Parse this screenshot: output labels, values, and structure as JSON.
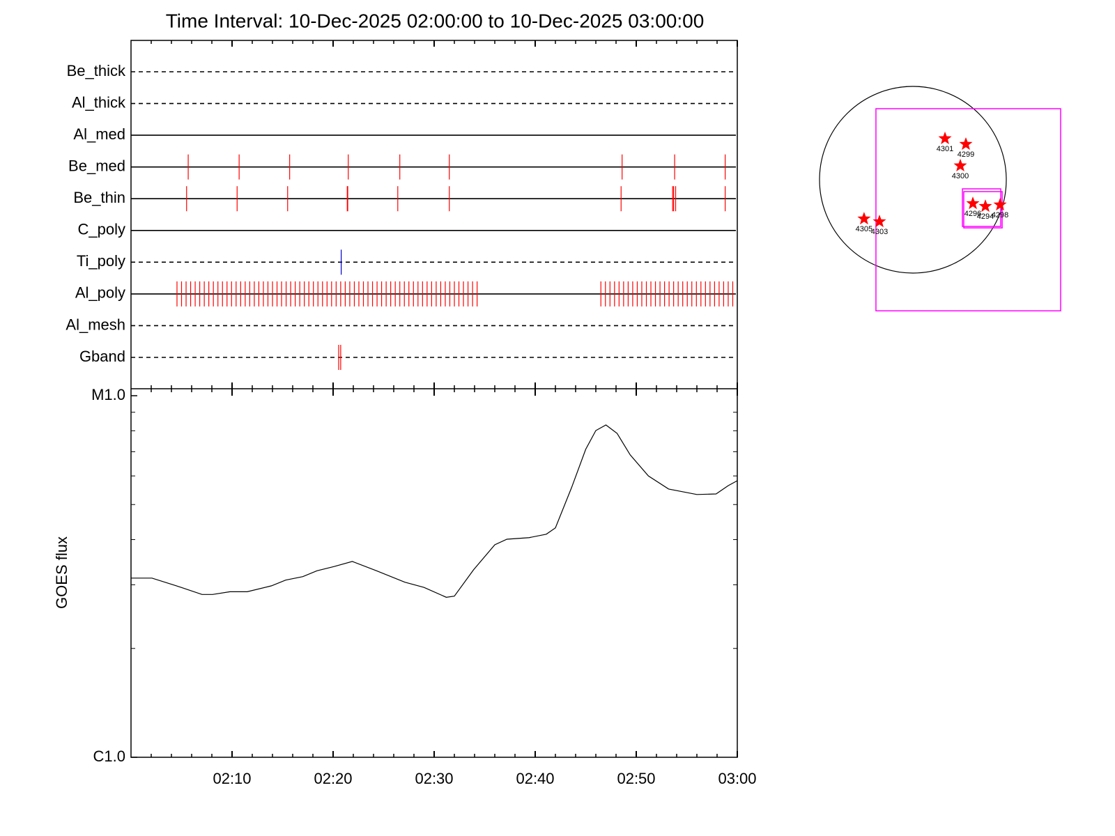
{
  "chart_data": [
    {
      "type": "event",
      "title": "Time Interval: 10-Dec-2025 02:00:00 to 10-Dec-2025 03:00:00",
      "xlim": [
        0,
        60
      ],
      "xticks": [
        10,
        20,
        30,
        40,
        50,
        60
      ],
      "xminorticks": [
        2,
        4,
        6,
        8,
        12,
        14,
        16,
        18,
        22,
        24,
        26,
        28,
        32,
        34,
        36,
        38,
        42,
        44,
        46,
        48,
        52,
        54,
        56,
        58
      ],
      "rows": [
        {
          "name": "Be_thick",
          "style": "dashed",
          "color": "#ff0000",
          "events": []
        },
        {
          "name": "Al_thick",
          "style": "dashed",
          "color": "#ff0000",
          "events": []
        },
        {
          "name": "Al_med",
          "style": "solid",
          "color": "#ff0000",
          "events": []
        },
        {
          "name": "Be_med",
          "style": "solid",
          "color": "#ff0000",
          "events": [
            5.66,
            10.7,
            15.7,
            21.5,
            26.6,
            31.5,
            48.6,
            53.8,
            58.8
          ]
        },
        {
          "name": "Be_thin",
          "style": "solid",
          "color": "#ff0000",
          "events": [
            5.5,
            10.5,
            15.5,
            21.4,
            21.45,
            26.4,
            31.5,
            48.5,
            53.6,
            53.7,
            53.9,
            58.8
          ]
        },
        {
          "name": "C_poly",
          "style": "solid",
          "color": "#ff0000",
          "events": []
        },
        {
          "name": "Ti_poly",
          "style": "dashed",
          "color": "#0000cc",
          "events": [
            20.8
          ]
        },
        {
          "name": "Al_poly",
          "style": "solid",
          "color": "#ff0000",
          "events": [
            4.55,
            5.0,
            5.45,
            5.9,
            6.35,
            6.8,
            7.25,
            7.7,
            8.15,
            8.6,
            9.05,
            9.5,
            9.95,
            10.4,
            10.85,
            11.3,
            11.75,
            12.2,
            12.65,
            13.1,
            13.55,
            14.0,
            14.45,
            14.9,
            15.35,
            15.8,
            16.25,
            16.7,
            17.15,
            17.6,
            18.05,
            18.5,
            18.95,
            19.4,
            19.85,
            20.3,
            20.75,
            21.2,
            21.65,
            22.1,
            22.55,
            23.0,
            23.45,
            23.9,
            24.35,
            24.8,
            25.25,
            25.7,
            26.15,
            26.6,
            27.05,
            27.5,
            27.95,
            28.4,
            28.85,
            29.3,
            29.75,
            30.2,
            30.65,
            31.1,
            31.55,
            32.0,
            32.45,
            32.9,
            33.35,
            33.8,
            34.25,
            46.5,
            46.95,
            47.4,
            47.85,
            48.3,
            48.75,
            49.2,
            49.65,
            50.1,
            50.55,
            51.0,
            51.45,
            51.9,
            52.35,
            52.8,
            53.25,
            53.7,
            54.15,
            54.6,
            55.05,
            55.5,
            55.95,
            56.4,
            56.85,
            57.3,
            57.75,
            58.2,
            58.65,
            59.1,
            59.55
          ]
        },
        {
          "name": "Al_mesh",
          "style": "dashed",
          "color": "#ff0000",
          "events": []
        },
        {
          "name": "Gband",
          "style": "dashed",
          "color": "#ff0000",
          "events": [
            20.55,
            20.75
          ]
        }
      ]
    },
    {
      "type": "line",
      "ylabel": "GOES flux",
      "ylog": true,
      "color": "#000000",
      "xlim": [
        0,
        60
      ],
      "xticks": [
        {
          "value": 10,
          "label": "02:10"
        },
        {
          "value": 20,
          "label": "02:20"
        },
        {
          "value": 30,
          "label": "02:30"
        },
        {
          "value": 40,
          "label": "02:40"
        },
        {
          "value": 50,
          "label": "02:50"
        },
        {
          "value": 60,
          "label": "03:00"
        }
      ],
      "xminorticks": [
        2,
        4,
        6,
        8,
        12,
        14,
        16,
        18,
        22,
        24,
        26,
        28,
        32,
        34,
        36,
        38,
        42,
        44,
        46,
        48,
        52,
        54,
        56,
        58
      ],
      "ylim": [
        1e-06,
        1e-05
      ],
      "yticks": [
        {
          "value": 1e-06,
          "label": "C1.0"
        },
        {
          "value": 1e-05,
          "label": "M1.0"
        }
      ],
      "yminorticks": [
        2e-06,
        3e-06,
        4e-06,
        5e-06,
        6e-06,
        7e-06,
        8e-06,
        9e-06
      ],
      "x": [
        0,
        2.07,
        4.97,
        7.03,
        8.07,
        9.79,
        11.5,
        13.9,
        15.3,
        17.0,
        18.4,
        20.1,
        21.9,
        24.3,
        27.1,
        29.0,
        31.2,
        32.0,
        33.9,
        36.0,
        37.2,
        39.4,
        41.1,
        42.0,
        43.6,
        45.0,
        46.0,
        47.0,
        48.1,
        49.4,
        51.2,
        53.2,
        56.0,
        57.9,
        59.1,
        60
      ],
      "values": [
        3.13e-06,
        3.13e-06,
        2.95e-06,
        2.82e-06,
        2.82e-06,
        2.87e-06,
        2.87e-06,
        2.98e-06,
        3.09e-06,
        3.16e-06,
        3.28e-06,
        3.37e-06,
        3.48e-06,
        3.28e-06,
        3.05e-06,
        2.95e-06,
        2.77e-06,
        2.79e-06,
        3.3e-06,
        3.87e-06,
        4.01e-06,
        4.05e-06,
        4.14e-06,
        4.31e-06,
        5.57e-06,
        7.11e-06,
        8.01e-06,
        8.3e-06,
        7.87e-06,
        6.86e-06,
        6e-06,
        5.52e-06,
        5.33e-06,
        5.35e-06,
        5.64e-06,
        5.82e-06
      ]
    },
    {
      "type": "map",
      "radius": 975,
      "color": "#ff0000",
      "box_color": "#ff00ff",
      "xlim": [
        -1100,
        1100
      ],
      "ylim": [
        -1100,
        1100
      ],
      "labels": [
        "4301",
        "4299",
        "4300",
        "4296",
        "4294",
        "4298",
        "4305",
        "4303"
      ],
      "x": [
        335,
        553,
        495,
        626,
        757,
        910,
        -510,
        -349
      ],
      "values": [
        430,
        371,
        146,
        -248,
        -277,
        -262,
        -408,
        -437
      ],
      "boxes": [
        {
          "x": [
            -386,
            1543
          ],
          "y": [
            742,
            -1369
          ]
        },
        {
          "x": [
            517,
            917
          ],
          "y": [
            -95,
            -488
          ]
        },
        {
          "x": [
            531,
            932
          ],
          "y": [
            -124,
            -503
          ]
        }
      ]
    }
  ]
}
